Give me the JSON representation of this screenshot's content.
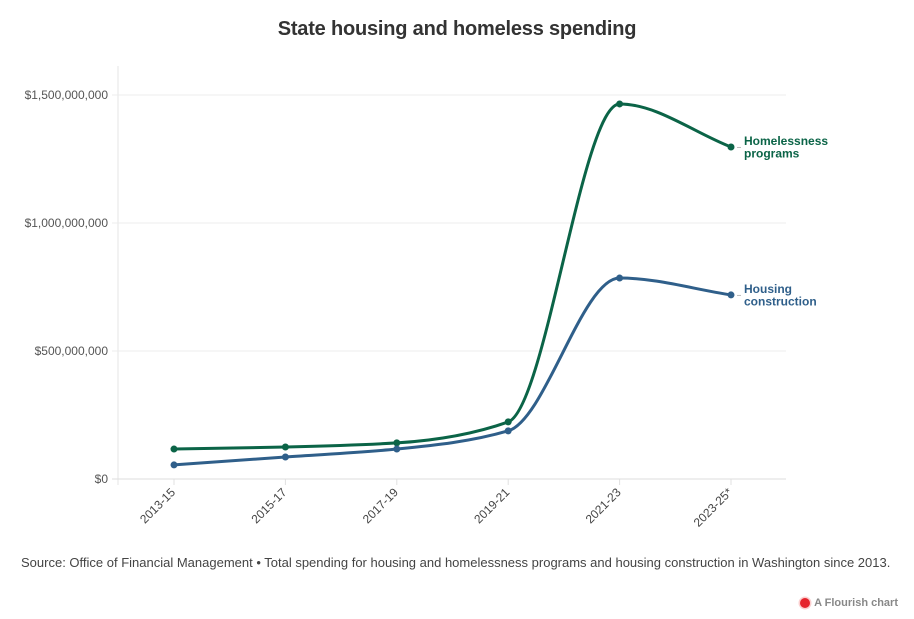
{
  "header": {
    "title": "State housing and homeless spending"
  },
  "footer": {
    "source_text": "Source: Office of Financial Management • Total spending for housing and homelessness programs and housing construction in Washington since 2013.",
    "branding": "A Flourish chart",
    "branding_icon": "flourish-logo-icon"
  },
  "chart_data": {
    "type": "line",
    "title": "State housing and homeless spending",
    "xlabel": "",
    "ylabel": "",
    "categories": [
      "2013-15",
      "2015-17",
      "2017-19",
      "2019-21",
      "2021-23",
      "2023-25*"
    ],
    "ylim": [
      0,
      1600000000
    ],
    "yticks": [
      0,
      500000000,
      1000000000,
      1500000000
    ],
    "ytick_labels": [
      "$0",
      "$500,000,000",
      "$1,000,000,000",
      "$1,500,000,000"
    ],
    "grid": true,
    "legend": "inline-right",
    "series": [
      {
        "name": "Homelessness programs",
        "label_lines": [
          "Homelessness",
          "programs"
        ],
        "color": "#0b6447",
        "values": [
          117000000,
          125000000,
          141000000,
          223000000,
          1465000000,
          1297000000
        ]
      },
      {
        "name": "Housing construction",
        "label_lines": [
          "Housing",
          "construction"
        ],
        "color": "#2f5f8a",
        "values": [
          55000000,
          86000000,
          117000000,
          188000000,
          785000000,
          719000000
        ]
      }
    ]
  }
}
